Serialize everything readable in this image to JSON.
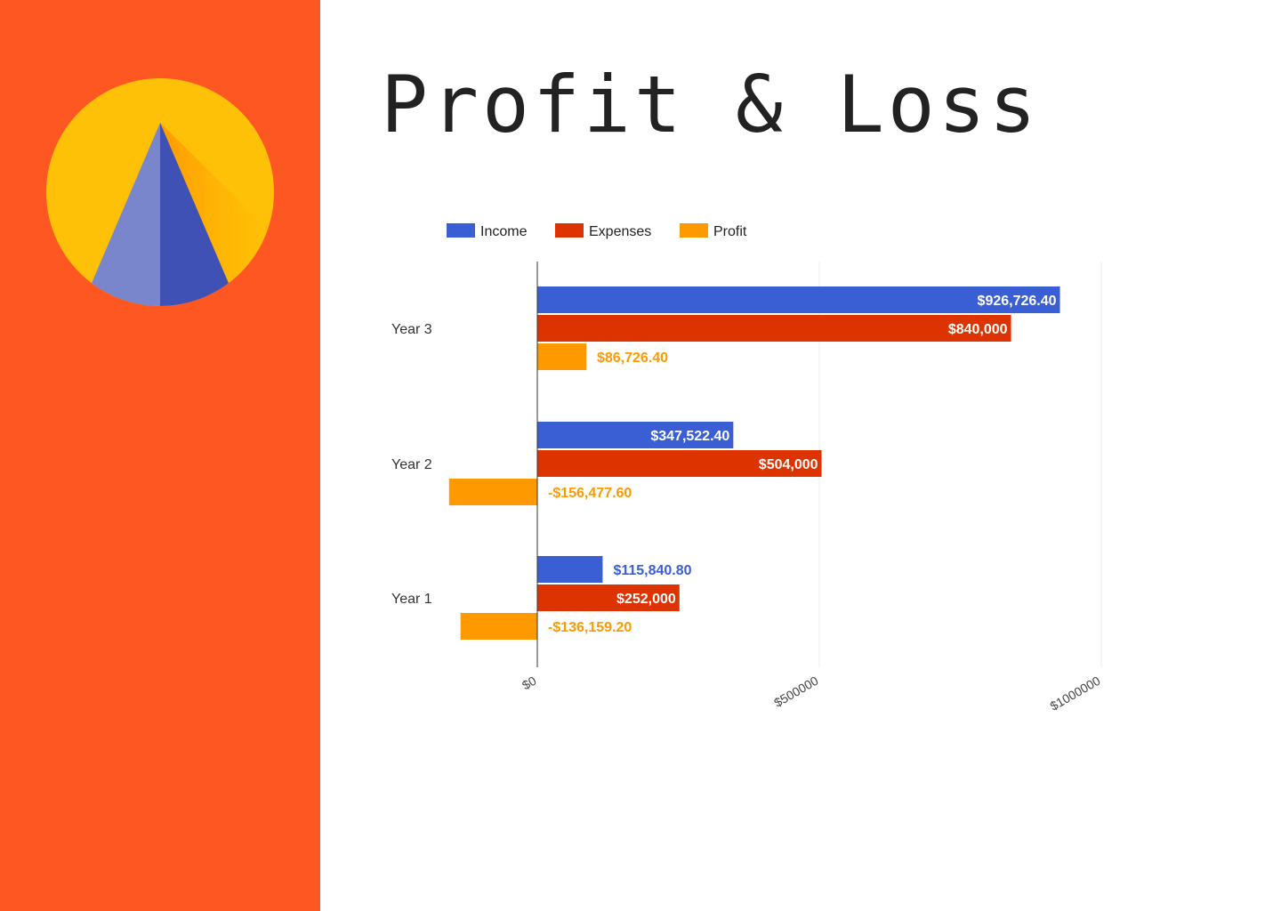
{
  "sidebar": {
    "background_color": "#FF5722",
    "logo_icon": "pyramid-sun-logo",
    "logo_colors": {
      "sun": "#FFC107",
      "pyramid_light": "#7986CB",
      "pyramid_dark": "#3F51B5",
      "shadow": "#FF9800"
    }
  },
  "page": {
    "title": "Profit & Loss"
  },
  "chart_data": {
    "type": "bar",
    "orientation": "horizontal",
    "categories": [
      "Year 3",
      "Year 2",
      "Year 1"
    ],
    "series": [
      {
        "name": "Income",
        "color": "#3A5FD4",
        "values": [
          926726.4,
          347522.4,
          115840.8
        ],
        "labels": [
          "$926,726.40",
          "$347,522.40",
          "$115,840.80"
        ]
      },
      {
        "name": "Expenses",
        "color": "#DD3300",
        "values": [
          840000,
          504000,
          252000
        ],
        "labels": [
          "$840,000",
          "$504,000",
          "$252,000"
        ]
      },
      {
        "name": "Profit",
        "color": "#FF9900",
        "values": [
          86726.4,
          -156477.6,
          -136159.2
        ],
        "labels": [
          "$86,726.40",
          "-$156,477.60",
          "-$136,159.20"
        ]
      }
    ],
    "xlim": [
      -160000,
      1000000
    ],
    "xticks": [
      0,
      500000,
      1000000
    ],
    "xtick_labels": [
      "$0",
      "$500000",
      "$1000000"
    ],
    "legend_position": "top-left",
    "grid": true
  }
}
